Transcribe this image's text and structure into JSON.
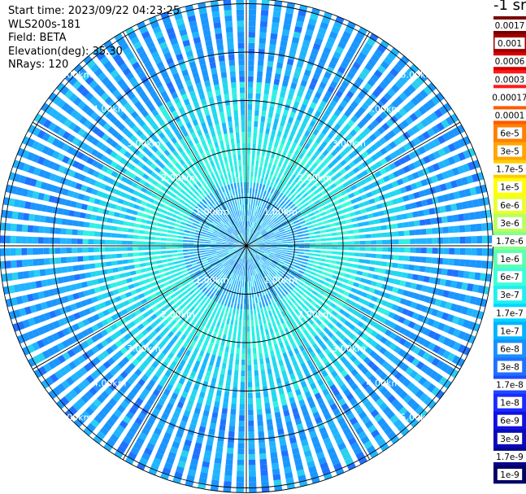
{
  "info": {
    "start_time": "Start time: 2023/09/22 04:23:25",
    "device": "WLS200s-181",
    "field": "Field: BETA",
    "elevation": "Elevation(deg): 35.30",
    "nrays": "NRays: 120"
  },
  "colorbar": {
    "unit": "-1 sr",
    "labels": [
      "0.0017",
      "0.001",
      "0.0006",
      "0.0003",
      "0.00017",
      "0.0001",
      "6e-5",
      "3e-5",
      "1.7e-5",
      "1e-5",
      "6e-6",
      "3e-6",
      "1.7e-6",
      "1e-6",
      "6e-7",
      "3e-7",
      "1.7e-7",
      "1e-7",
      "6e-8",
      "3e-8",
      "1.7e-8",
      "1e-8",
      "6e-9",
      "3e-9",
      "1.7e-9",
      "1e-9"
    ],
    "colors": [
      "#7a0000",
      "#a00000",
      "#d40000",
      "#ff1a1a",
      "#ffffff",
      "#ff5a00",
      "#ff7e00",
      "#ffa500",
      "#ffcc00",
      "#ffff00",
      "#e8ff30",
      "#b8ff60",
      "#88ff88",
      "#5cffb0",
      "#3cffd8",
      "#20f0f0",
      "#00d8ff",
      "#00b4ff",
      "#1890ff",
      "#2070ff",
      "#1e4bff",
      "#1a2cff",
      "#1010e0",
      "#0a0ab8",
      "#06068e",
      "#020266"
    ]
  },
  "chart_data": {
    "type": "heatmap",
    "title": "",
    "rings_km": [
      1,
      2,
      3,
      4,
      5
    ],
    "ring_labels": [
      "1.00km",
      "2.00km",
      "3.00km",
      "4.00km",
      "5.00km"
    ],
    "max_range_km": 5.1,
    "nrays": 120,
    "spokes_deg": [
      0,
      30,
      60,
      90,
      120,
      150,
      180,
      210,
      240,
      270,
      300,
      330
    ],
    "radial_zones": [
      {
        "r_km": [
          0.0,
          0.45
        ],
        "beta_typical": "3e-7"
      },
      {
        "r_km": [
          0.45,
          1.3
        ],
        "beta_typical": "1.7e-7"
      },
      {
        "r_km": [
          1.3,
          2.3
        ],
        "beta_typical": "1.7e-7"
      },
      {
        "r_km": [
          2.3,
          3.3
        ],
        "beta_typical": "1e-7"
      },
      {
        "r_km": [
          3.3,
          5.1
        ],
        "beta_typical": "6e-8"
      }
    ]
  }
}
